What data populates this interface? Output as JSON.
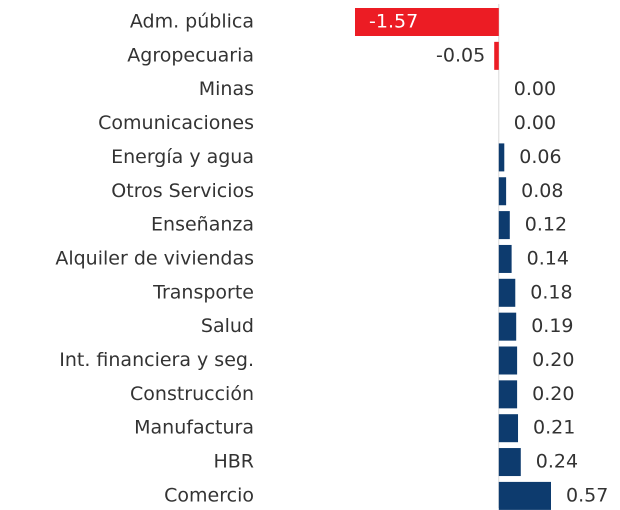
{
  "chart_data": {
    "type": "barh",
    "categories": [
      "Adm. pública",
      "Agropecuaria",
      "Minas",
      "Comunicaciones",
      "Energía y agua",
      "Otros Servicios",
      "Enseñanza",
      "Alquiler de viviendas",
      "Transporte",
      "Salud",
      "Int. financiera y seg.",
      "Construcción",
      "Manufactura",
      "HBR",
      "Comercio"
    ],
    "values": [
      -1.57,
      -0.05,
      0,
      0,
      0.06,
      0.08,
      0.12,
      0.14,
      0.18,
      0.19,
      0.2,
      0.2,
      0.21,
      0.24,
      0.57
    ],
    "value_labels": [
      "-1.57",
      "-0.05",
      "0.00",
      "0.00",
      "0.06",
      "0.08",
      "0.12",
      "0.14",
      "0.18",
      "0.19",
      "0.20",
      "0.20",
      "0.21",
      "0.24",
      "0.57"
    ],
    "colors": {
      "negative": "#ec1c24",
      "positive": "#0d3b6e"
    }
  }
}
